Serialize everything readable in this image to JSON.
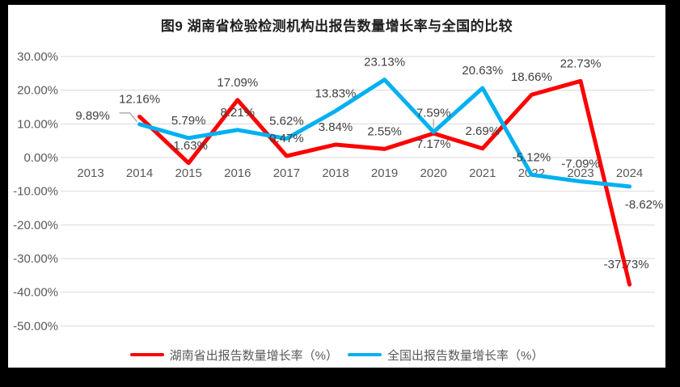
{
  "chart_data": {
    "type": "line",
    "title": "图9 湖南省检验检测机构出报告数量增长率与全国的比较",
    "categories": [
      "2013",
      "2014",
      "2015",
      "2016",
      "2017",
      "2018",
      "2019",
      "2020",
      "2021",
      "2022",
      "2023",
      "2024"
    ],
    "series": [
      {
        "name": "湖南省出报告数量增长率（%）",
        "color": "#FF0000",
        "values": [
          null,
          12.16,
          -1.63,
          17.09,
          0.47,
          3.84,
          2.55,
          7.17,
          2.69,
          18.66,
          22.73,
          -37.73
        ],
        "labels": [
          null,
          "12.16%",
          "-1.63%",
          "17.09%",
          "0.47%",
          "3.84%",
          "2.55%",
          "7.17%",
          "2.69%",
          "18.66%",
          "22.73%",
          "-37.73%"
        ],
        "label_placement": [
          null,
          "above",
          "above",
          "above",
          "above",
          "above",
          "above",
          "below",
          "above",
          "above",
          "above",
          "above-left"
        ]
      },
      {
        "name": "全国出报告数量增长率（%）",
        "color": "#00B0F0",
        "values": [
          null,
          9.89,
          5.79,
          8.21,
          5.62,
          13.83,
          23.13,
          7.59,
          20.63,
          -5.12,
          -7.09,
          -8.62
        ],
        "labels": [
          null,
          "9.89%",
          "5.79%",
          "8.21%",
          "5.62%",
          "13.83%",
          "23.13%",
          "7.59%",
          "20.63%",
          "-5.12%",
          "-7.09%",
          "-8.62%"
        ],
        "label_placement": [
          null,
          "left-leader",
          "above",
          "above",
          "above",
          "above",
          "above",
          "above-leader",
          "above",
          "above",
          "above",
          "below-right"
        ]
      }
    ],
    "y_axis": {
      "min": -50,
      "max": 30,
      "step": 10,
      "tick_labels": [
        "30.00%",
        "20.00%",
        "10.00%",
        "0.00%",
        "-10.00%",
        "-20.00%",
        "-30.00%",
        "-40.00%",
        "-50.00%"
      ]
    },
    "grid": true,
    "legend_position": "bottom",
    "colors": {
      "background": "#000000",
      "panel": "#ffffff",
      "gridline": "#D9D9D9",
      "axis_text": "#595959",
      "data_label_text": "#404040",
      "title_text": "#1f1f1f",
      "leader": "#A6A6A6"
    }
  }
}
